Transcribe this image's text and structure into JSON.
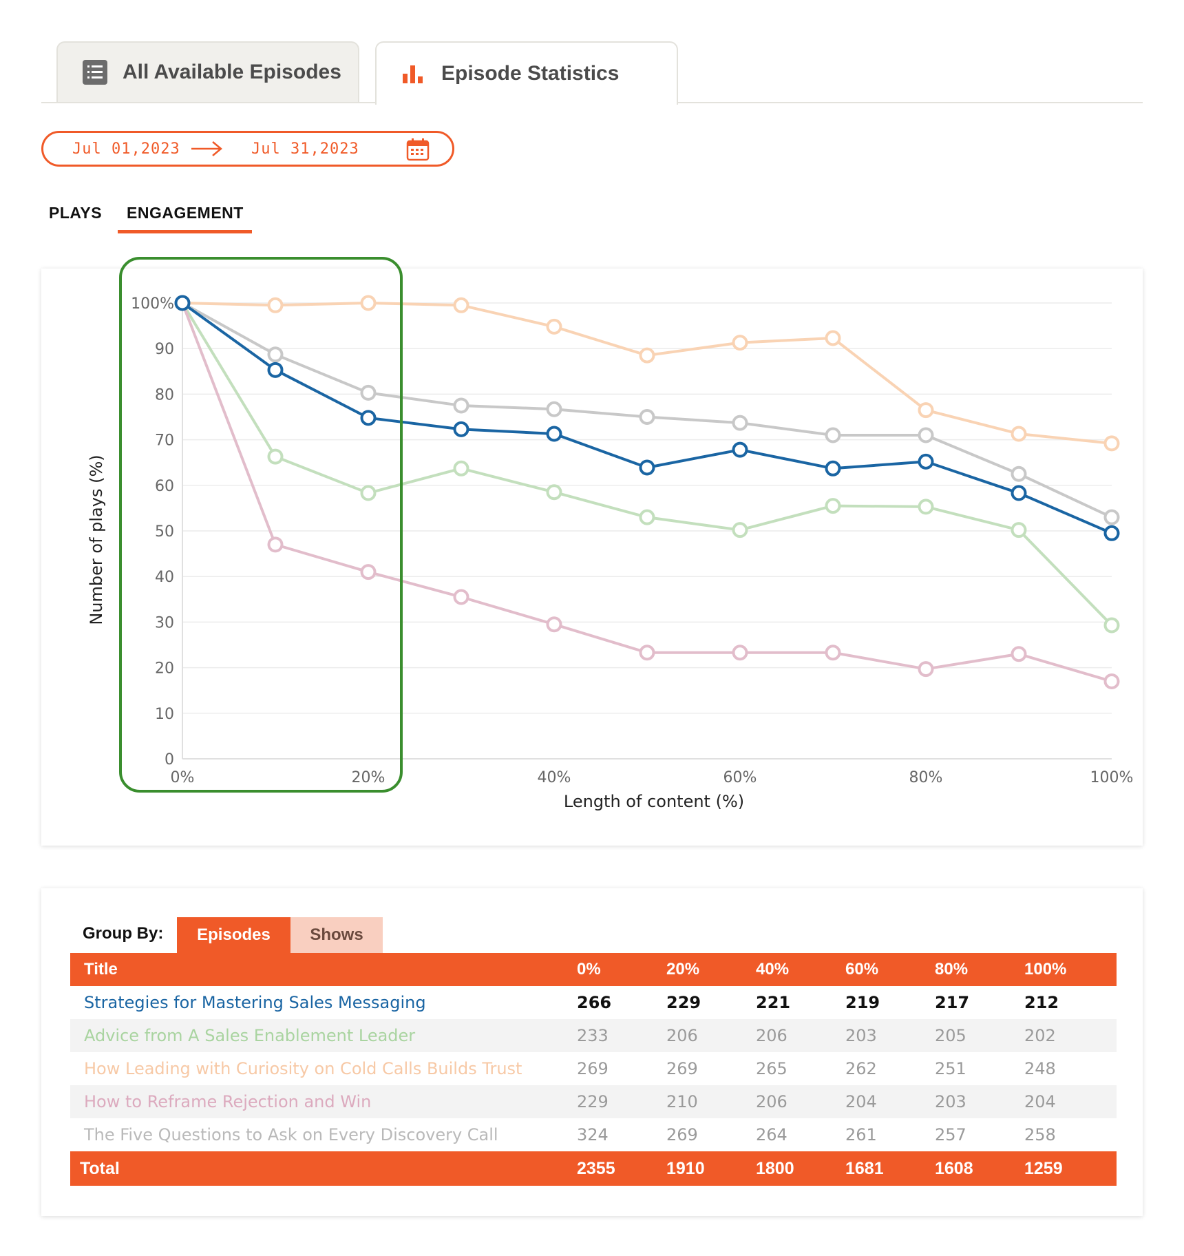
{
  "tabs": {
    "all_episodes": "All Available Episodes",
    "statistics": "Episode Statistics"
  },
  "date_range": {
    "start": "Jul 01,2023",
    "end": "Jul 31,2023"
  },
  "view_tabs": {
    "plays": "PLAYS",
    "engagement": "ENGAGEMENT",
    "active": "engagement"
  },
  "chart_data": {
    "type": "line",
    "xlabel": "Length of content (%)",
    "ylabel": "Number of plays (%)",
    "x": [
      0,
      10,
      20,
      30,
      40,
      50,
      60,
      70,
      80,
      90,
      100
    ],
    "x_tick_labels": [
      "0%",
      "20%",
      "40%",
      "60%",
      "80%",
      "100%"
    ],
    "x_tick_values": [
      0,
      20,
      40,
      60,
      80,
      100
    ],
    "y_tick_labels": [
      "100%",
      "90",
      "80",
      "70",
      "60",
      "50",
      "40",
      "30",
      "20",
      "10",
      "0"
    ],
    "y_tick_values": [
      100,
      90,
      80,
      70,
      60,
      50,
      40,
      30,
      20,
      10,
      0
    ],
    "xlim": [
      0,
      100
    ],
    "ylim": [
      0,
      100
    ],
    "grid": true,
    "highlight_range_x": [
      0,
      20
    ],
    "series": [
      {
        "color": "#f9d3b4",
        "values": [
          100,
          99.5,
          100,
          99.5,
          94.8,
          88.5,
          91.3,
          92.3,
          76.5,
          71.3,
          69.2
        ]
      },
      {
        "color": "#c8c8c8",
        "values": [
          100,
          88.7,
          80.3,
          77.5,
          76.7,
          75.0,
          73.7,
          71.0,
          71.0,
          62.5,
          53.0
        ]
      },
      {
        "color": "#c3dfbd",
        "values": [
          100,
          66.3,
          58.3,
          63.7,
          58.5,
          53.0,
          50.2,
          55.5,
          55.3,
          50.2,
          29.3
        ]
      },
      {
        "color": "#e2bdcb",
        "values": [
          100,
          47.0,
          41.0,
          35.5,
          29.5,
          23.3,
          23.3,
          23.3,
          19.7,
          23.0,
          17.0
        ]
      },
      {
        "color": "#1a65a3",
        "values": [
          100,
          85.3,
          74.8,
          72.3,
          71.3,
          63.9,
          67.8,
          63.7,
          65.2,
          58.3,
          49.5
        ]
      }
    ]
  },
  "table": {
    "group_by_label": "Group By:",
    "group_options": [
      "Episodes",
      "Shows"
    ],
    "group_selected": "Episodes",
    "columns": [
      "Title",
      "0%",
      "20%",
      "40%",
      "60%",
      "80%",
      "100%"
    ],
    "rows": [
      {
        "title": "Strategies for Mastering Sales Messaging",
        "color": "#1a65a3",
        "values": [
          "266",
          "229",
          "221",
          "219",
          "217",
          "212"
        ]
      },
      {
        "title": "Advice from A Sales Enablement Leader",
        "color": "#a9d4a0",
        "values": [
          "233",
          "206",
          "206",
          "203",
          "205",
          "202"
        ]
      },
      {
        "title": "How Leading with Curiosity on Cold Calls Builds Trust",
        "color": "#f7c9a6",
        "values": [
          "269",
          "269",
          "265",
          "262",
          "251",
          "248"
        ]
      },
      {
        "title": "How to Reframe Rejection and Win",
        "color": "#dcaabe",
        "values": [
          "229",
          "210",
          "206",
          "204",
          "203",
          "204"
        ]
      },
      {
        "title": "The Five Questions to Ask on Every Discovery Call",
        "color": "#b9b9b9",
        "values": [
          "324",
          "269",
          "264",
          "261",
          "257",
          "258"
        ]
      }
    ],
    "total": {
      "label": "Total",
      "values": [
        "2355",
        "1910",
        "1800",
        "1681",
        "1608",
        "1259"
      ]
    }
  },
  "colors": {
    "accent": "#f05a28",
    "highlight_box": "#3a8e2e"
  }
}
